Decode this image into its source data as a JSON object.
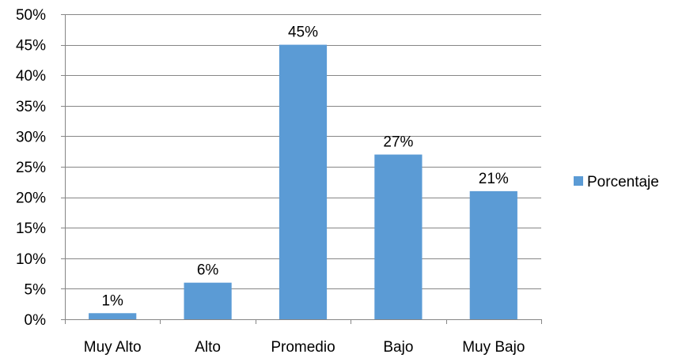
{
  "chart_data": {
    "type": "bar",
    "categories": [
      "Muy Alto",
      "Alto",
      "Promedio",
      "Bajo",
      "Muy Bajo"
    ],
    "series": [
      {
        "name": "Porcentaje",
        "values": [
          1,
          6,
          45,
          27,
          21
        ],
        "color": "#5B9BD5"
      }
    ],
    "data_labels": [
      "1%",
      "6%",
      "45%",
      "27%",
      "21%"
    ],
    "y_ticks": [
      0,
      5,
      10,
      15,
      20,
      25,
      30,
      35,
      40,
      45,
      50
    ],
    "y_tick_labels": [
      "0%",
      "5%",
      "10%",
      "15%",
      "20%",
      "25%",
      "30%",
      "35%",
      "40%",
      "45%",
      "50%"
    ],
    "ylim": [
      0,
      50
    ],
    "grid": true,
    "legend_position": "right",
    "gridline_color": "#868686",
    "axis_color": "#868686"
  }
}
